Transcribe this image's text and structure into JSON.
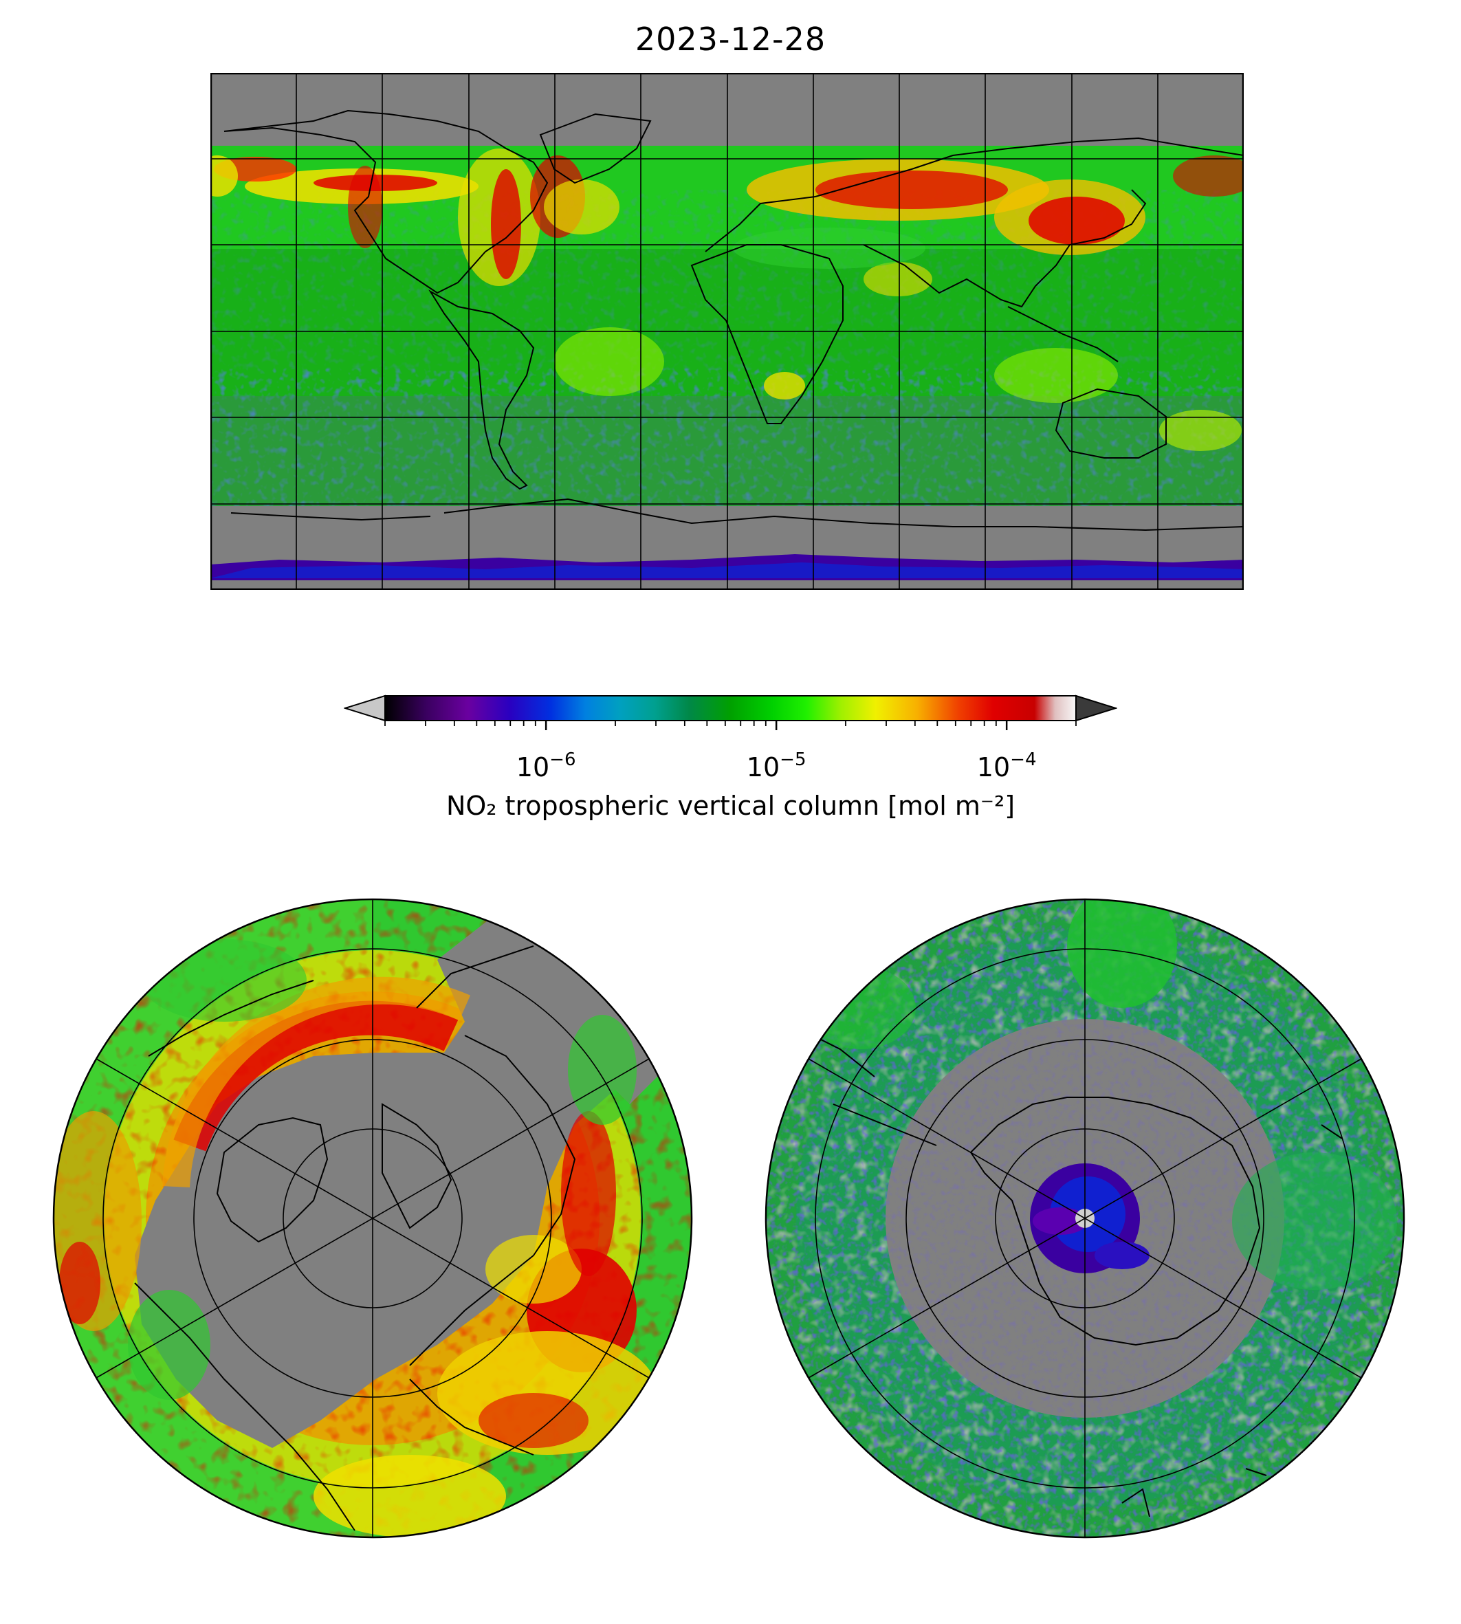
{
  "figure": {
    "title": "2023-12-28"
  },
  "colorbar": {
    "label": "NO₂ tropospheric vertical column [mol m⁻²]",
    "scale": "log",
    "range": [
      2e-07,
      0.0002
    ],
    "extend": "both",
    "under_color": "#c8c8c8",
    "over_color": "#3a3a3a",
    "major_ticks": [
      {
        "value": 1e-06,
        "base": "10",
        "exponent": "−6"
      },
      {
        "value": 1e-05,
        "base": "10",
        "exponent": "−5"
      },
      {
        "value": 0.0001,
        "base": "10",
        "exponent": "−4"
      }
    ],
    "colormap_stops": [
      "#000000",
      "#3a0060",
      "#6a00a0",
      "#2a00c0",
      "#0020e0",
      "#0070e0",
      "#00a0c0",
      "#00a090",
      "#008848",
      "#00a000",
      "#00c800",
      "#00f000",
      "#90f000",
      "#f0f000",
      "#f8b800",
      "#f06000",
      "#e00000",
      "#c80000",
      "#d0d0d0",
      "#f8f8f8"
    ]
  },
  "maps": {
    "world": {
      "projection": "plate-carree",
      "no_data_color": "#808080"
    },
    "north_polar": {
      "projection": "north-polar-stereographic",
      "no_data_color": "#808080"
    },
    "south_polar": {
      "projection": "south-polar-stereographic",
      "no_data_color": "#808080"
    }
  }
}
